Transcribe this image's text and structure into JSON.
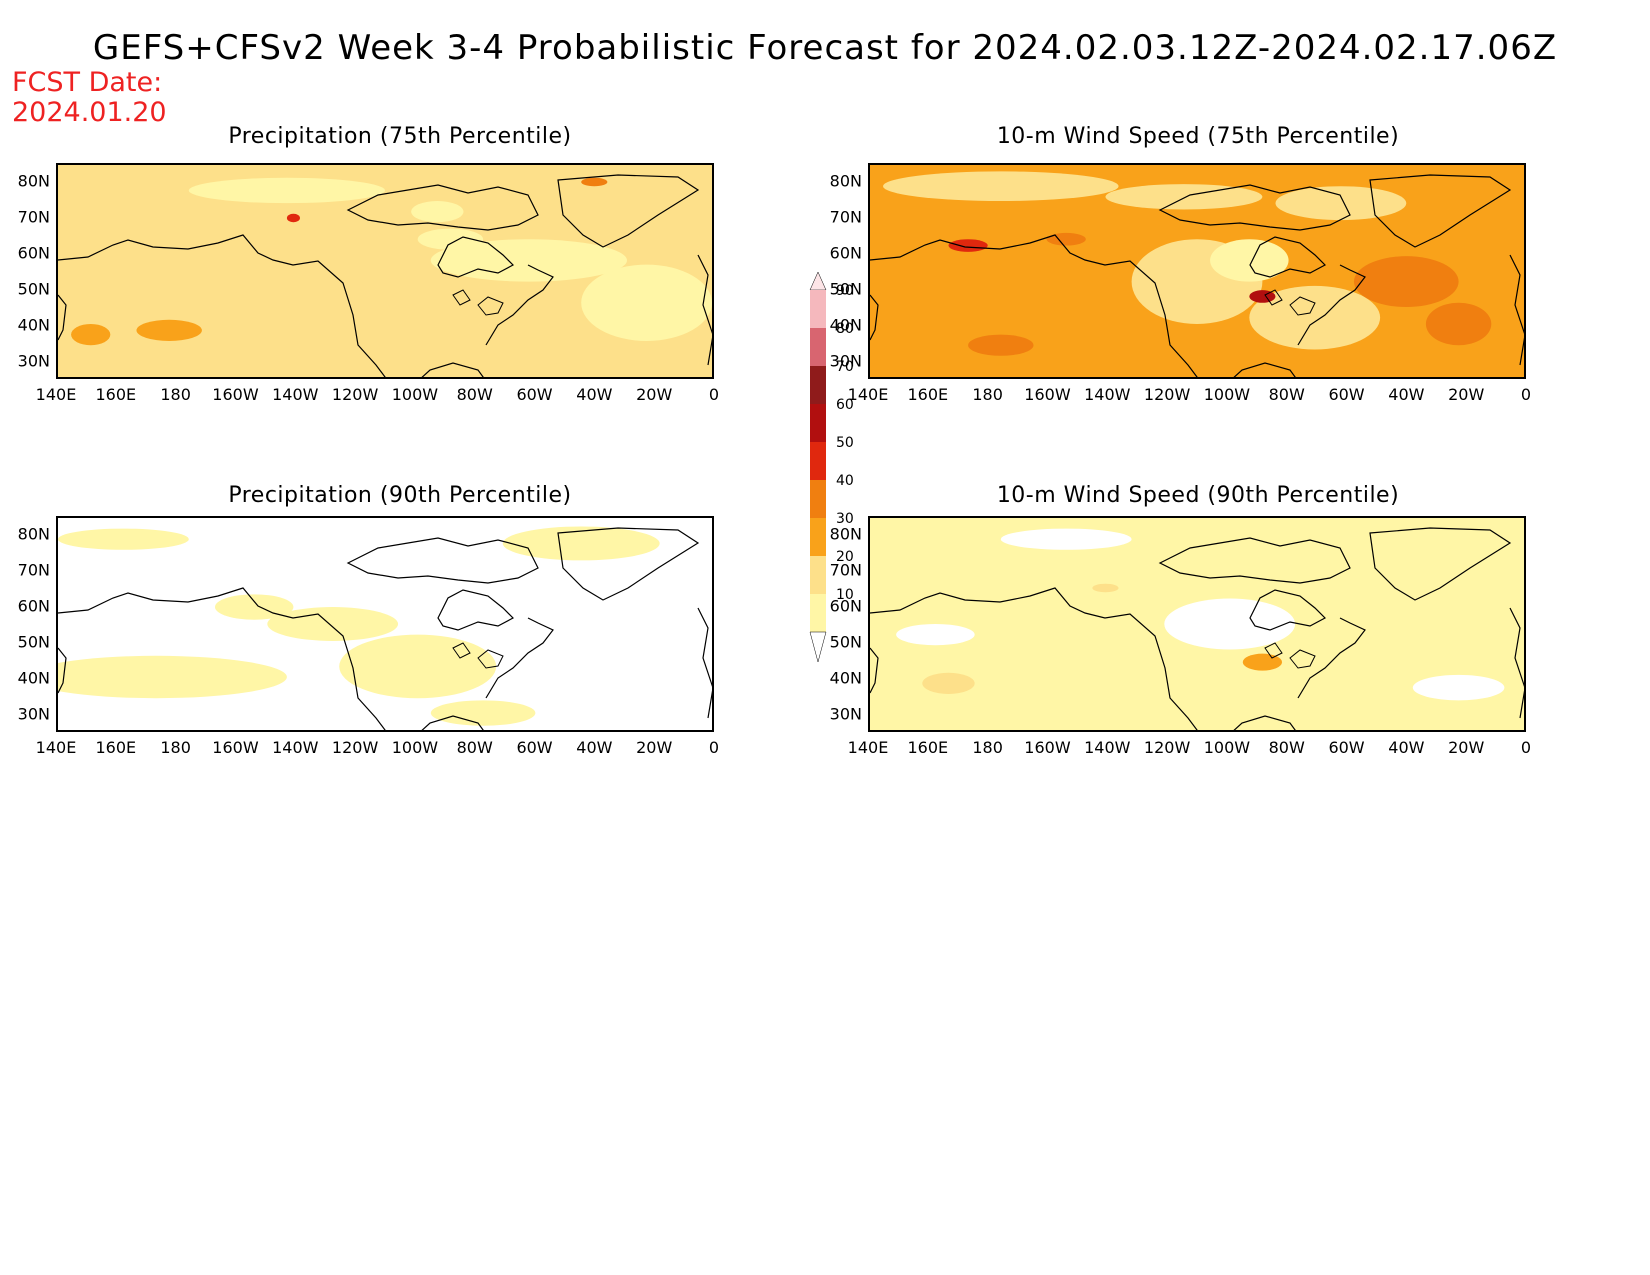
{
  "header": {
    "title": "GEFS+CFSv2 Week 3-4 Probabilistic Forecast for 2024.02.03.12Z-2024.02.17.06Z",
    "fcst_label": "FCST Date:",
    "fcst_date": "2024.01.20"
  },
  "x_ticks": [
    "140E",
    "160E",
    "180",
    "160W",
    "140W",
    "120W",
    "100W",
    "80W",
    "60W",
    "40W",
    "20W",
    "0"
  ],
  "y_ticks": [
    "80N",
    "70N",
    "60N",
    "50N",
    "40N",
    "30N"
  ],
  "colors": {
    "c10": "#fff6a6",
    "c20": "#fde08a",
    "c30": "#f9a21a",
    "c40": "#f07f10",
    "c50": "#e0280e",
    "c60": "#b10f0f",
    "c70": "#8f1b1b",
    "c80": "#d86570",
    "c90": "#f5b8bd"
  },
  "colorbar": {
    "levels": [
      "10",
      "20",
      "30",
      "40",
      "50",
      "60",
      "70",
      "80",
      "90"
    ]
  },
  "panels": [
    {
      "title": "Precipitation (75th Percentile)",
      "base_level": "20"
    },
    {
      "title": "10-m Wind Speed (75th Percentile)",
      "base_level": "40"
    },
    {
      "title": "Precipitation (90th Percentile)",
      "base_level": "10"
    },
    {
      "title": "10-m Wind Speed (90th Percentile)",
      "base_level": "10"
    }
  ]
}
